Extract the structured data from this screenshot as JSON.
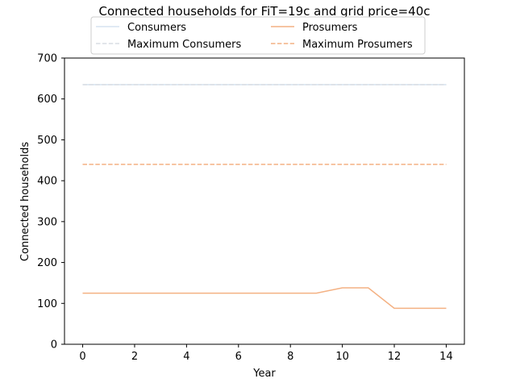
{
  "chart_data": {
    "type": "line",
    "title": "Connected households for FiT=19c and grid price=40c",
    "xlabel": "Year",
    "ylabel": "Connected households",
    "xlim": [
      -0.7,
      14.7
    ],
    "ylim": [
      0,
      700
    ],
    "xticks": [
      0,
      2,
      4,
      6,
      8,
      10,
      12,
      14
    ],
    "yticks": [
      0,
      100,
      200,
      300,
      400,
      500,
      600,
      700
    ],
    "grid": false,
    "legend_position": "top-center",
    "x": [
      0,
      1,
      2,
      3,
      4,
      5,
      6,
      7,
      8,
      9,
      10,
      11,
      12,
      13,
      14
    ],
    "series": [
      {
        "name": "Consumers",
        "color": "#d6e3f0",
        "style": "solid",
        "values": [
          635,
          635,
          635,
          635,
          635,
          635,
          635,
          635,
          635,
          635,
          635,
          635,
          635,
          635,
          635
        ]
      },
      {
        "name": "Prosumers",
        "color": "#f4b183",
        "style": "solid",
        "values": [
          125,
          125,
          125,
          125,
          125,
          125,
          125,
          125,
          125,
          125,
          138,
          138,
          88,
          88,
          88
        ]
      },
      {
        "name": "Maximum Consumers",
        "color": "#d9dee4",
        "style": "dashed",
        "values": [
          635,
          635,
          635,
          635,
          635,
          635,
          635,
          635,
          635,
          635,
          635,
          635,
          635,
          635,
          635
        ]
      },
      {
        "name": "Maximum Prosumers",
        "color": "#f4b183",
        "style": "dashed",
        "values": [
          440,
          440,
          440,
          440,
          440,
          440,
          440,
          440,
          440,
          440,
          440,
          440,
          440,
          440,
          440
        ]
      }
    ],
    "legend_order": [
      "Consumers",
      "Prosumers",
      "Maximum Consumers",
      "Maximum Prosumers"
    ]
  }
}
